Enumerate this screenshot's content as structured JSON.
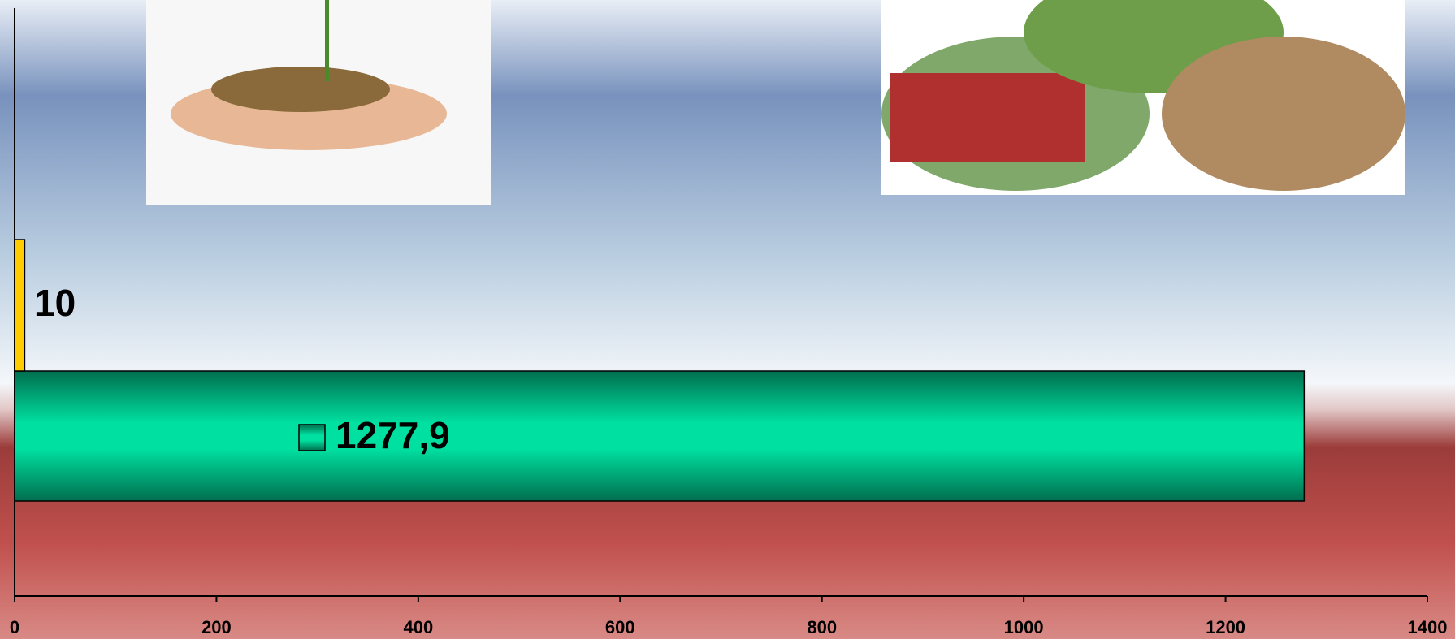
{
  "chart_data": {
    "type": "barh",
    "categories": [
      null,
      null
    ],
    "values": [
      1277.9,
      10
    ],
    "value_labels": [
      "1277,9",
      "10"
    ],
    "colors": [
      "#00e0a0",
      "#ffcc00"
    ],
    "xlim": [
      0,
      1400
    ],
    "xticks": [
      0,
      200,
      400,
      600,
      800,
      1000,
      1200,
      1400
    ]
  }
}
